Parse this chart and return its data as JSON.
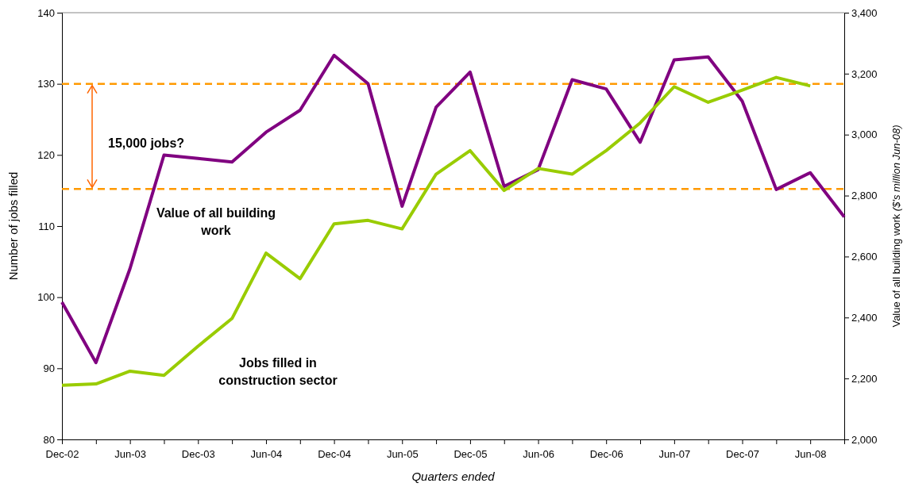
{
  "chart_data": {
    "type": "line",
    "xlabel": "Quarters ended",
    "ylabel": "Number of jobs filled",
    "y2label": "Value of all building work ($'s million Jun-08)",
    "categories": [
      "Dec-02",
      null,
      "Jun-03",
      null,
      "Dec-03",
      null,
      "Jun-04",
      null,
      "Dec-04",
      null,
      "Jun-05",
      null,
      "Dec-05",
      null,
      "Jun-06",
      null,
      "Dec-06",
      null,
      "Jun-07",
      null,
      "Dec-07",
      null,
      "Jun-08",
      null
    ],
    "series": [
      {
        "name": "Value of all building work",
        "color": "#800080",
        "axis": "y2",
        "values": [
          2450,
          2252,
          2560,
          2933,
          2922,
          2910,
          3008,
          3080,
          3260,
          3167,
          2765,
          3090,
          3205,
          2830,
          2885,
          3180,
          3150,
          2975,
          3245,
          3255,
          3110,
          2820,
          2875,
          2730
        ]
      },
      {
        "name": "Jobs filled in construction sector",
        "color": "#99cc00",
        "values": [
          87.6,
          87.8,
          89.6,
          89,
          93.1,
          97,
          106.2,
          102.6,
          110.3,
          110.8,
          109.6,
          117.3,
          120.6,
          115,
          118.1,
          117.3,
          120.6,
          124.5,
          129.6,
          127.4,
          129.1,
          130.9,
          129.7,
          null
        ]
      }
    ],
    "ylim": [
      80,
      140
    ],
    "yticks": [
      80,
      90,
      100,
      110,
      120,
      130,
      140
    ],
    "y2lim": [
      2000,
      3400
    ],
    "y2ticks": [
      {
        "value": 2000,
        "label": "2,000"
      },
      {
        "value": 2200,
        "label": "2,200"
      },
      {
        "value": 2400,
        "label": "2,400"
      },
      {
        "value": 2600,
        "label": "2,600"
      },
      {
        "value": 2800,
        "label": "2,800"
      },
      {
        "value": 3000,
        "label": "3,000"
      },
      {
        "value": 3200,
        "label": "3,200"
      },
      {
        "value": 3400,
        "label": "3,400"
      }
    ],
    "ref_lines": [
      {
        "axis": "y",
        "value": 130,
        "color": "#ff9900",
        "line_style": "dashed"
      },
      {
        "axis": "y",
        "value": 115.2,
        "color": "#ff9900",
        "line_style": "dashed"
      }
    ],
    "annotations": [
      "15,000 jobs?"
    ],
    "grid": false,
    "legend": false,
    "marker": "none",
    "line_style": "solid"
  }
}
